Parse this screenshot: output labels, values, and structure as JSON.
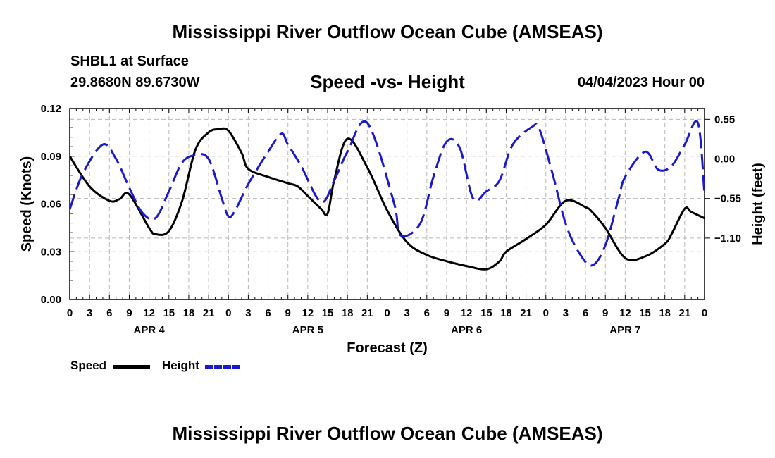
{
  "header": {
    "title": "Mississippi River Outflow Ocean Cube (AMSEAS)",
    "station": "SHBL1 at Surface",
    "coordinates": "29.8680N  89.6730W",
    "subtitle": "Speed -vs- Height",
    "datetime": "04/04/2023 Hour 00"
  },
  "footer": {
    "title": "Mississippi River Outflow Ocean Cube (AMSEAS)"
  },
  "legend": {
    "items": [
      {
        "label": "Speed",
        "color": "#000000",
        "style": "solid"
      },
      {
        "label": "Height",
        "color": "#1a1acc",
        "style": "dashed"
      }
    ]
  },
  "chart_data": {
    "type": "line",
    "title": "Speed -vs- Height",
    "xlabel": "Forecast (Z)",
    "ylabel": "Speed (Knots)",
    "y2label": "Height (feet)",
    "grid": true,
    "xlim": [
      0,
      96
    ],
    "ylim": [
      0,
      0.12
    ],
    "y2lim": [
      -1.953,
      0.7
    ],
    "x_ticks": [
      0,
      3,
      6,
      9,
      12,
      15,
      18,
      21,
      24,
      27,
      30,
      33,
      36,
      39,
      42,
      45,
      48,
      51,
      54,
      57,
      60,
      63,
      66,
      69,
      72,
      75,
      78,
      81,
      84,
      87,
      90,
      93,
      96
    ],
    "x_tick_labels": [
      "0",
      "3",
      "6",
      "9",
      "12",
      "15",
      "18",
      "21",
      "0",
      "3",
      "6",
      "9",
      "12",
      "15",
      "18",
      "21",
      "0",
      "3",
      "6",
      "9",
      "12",
      "15",
      "18",
      "21",
      "0",
      "3",
      "6",
      "9",
      "12",
      "15",
      "18",
      "21",
      "0"
    ],
    "day_labels": [
      {
        "x": 12,
        "label": "APR 4"
      },
      {
        "x": 36,
        "label": "APR 5"
      },
      {
        "x": 60,
        "label": "APR 6"
      },
      {
        "x": 84,
        "label": "APR 7"
      }
    ],
    "y_ticks": [
      0.0,
      0.03,
      0.06,
      0.09,
      0.12
    ],
    "y_tick_labels": [
      "0.00",
      "0.03",
      "0.06",
      "0.09",
      "0.12"
    ],
    "y2_ticks": [
      0.55,
      0.0,
      -0.55,
      -1.1
    ],
    "y2_tick_labels": [
      "0.55",
      "0.00",
      "−0.55",
      "−1.10"
    ],
    "series": [
      {
        "name": "Speed",
        "axis": "left",
        "color": "#000000",
        "x": [
          0,
          3,
          6,
          7.5,
          9,
          12,
          13,
          15,
          17,
          19,
          21,
          22.5,
          24,
          26,
          27,
          30,
          33,
          34.5,
          36,
          38,
          39,
          40,
          42,
          45,
          48,
          51,
          54,
          57,
          60,
          63,
          65,
          66,
          69,
          72,
          75,
          78,
          79,
          81,
          84,
          87,
          90,
          91,
          93,
          94,
          96
        ],
        "y": [
          0.09,
          0.071,
          0.062,
          0.063,
          0.066,
          0.045,
          0.041,
          0.043,
          0.062,
          0.094,
          0.105,
          0.107,
          0.106,
          0.092,
          0.082,
          0.077,
          0.073,
          0.071,
          0.065,
          0.057,
          0.054,
          0.075,
          0.101,
          0.083,
          0.056,
          0.036,
          0.028,
          0.024,
          0.021,
          0.019,
          0.024,
          0.03,
          0.038,
          0.047,
          0.062,
          0.058,
          0.055,
          0.045,
          0.026,
          0.027,
          0.035,
          0.041,
          0.057,
          0.055,
          0.051
        ]
      },
      {
        "name": "Height",
        "axis": "right",
        "color": "#1a1acc",
        "dashed": true,
        "x": [
          0,
          2,
          5,
          7,
          9,
          11,
          13,
          15,
          17,
          19,
          21,
          23,
          24,
          25,
          27,
          30,
          32,
          33,
          35,
          38,
          40,
          42,
          45,
          49,
          50,
          53,
          55,
          57,
          59,
          61,
          63,
          65,
          67,
          70,
          71,
          73,
          75,
          77,
          79,
          81,
          83,
          84,
          87,
          89,
          91,
          93,
          95,
          96
        ],
        "y": [
          -0.7,
          -0.2,
          0.2,
          0.0,
          -0.4,
          -0.75,
          -0.82,
          -0.45,
          -0.05,
          0.05,
          0.0,
          -0.55,
          -0.8,
          -0.72,
          -0.35,
          0.1,
          0.35,
          0.2,
          -0.1,
          -0.6,
          -0.3,
          0.1,
          0.5,
          -0.6,
          -1.06,
          -0.9,
          -0.25,
          0.24,
          0.15,
          -0.55,
          -0.45,
          -0.3,
          0.2,
          0.45,
          0.42,
          -0.2,
          -0.9,
          -1.3,
          -1.48,
          -1.2,
          -0.55,
          -0.25,
          0.1,
          -0.15,
          -0.1,
          0.2,
          0.5,
          -0.5
        ]
      }
    ]
  }
}
